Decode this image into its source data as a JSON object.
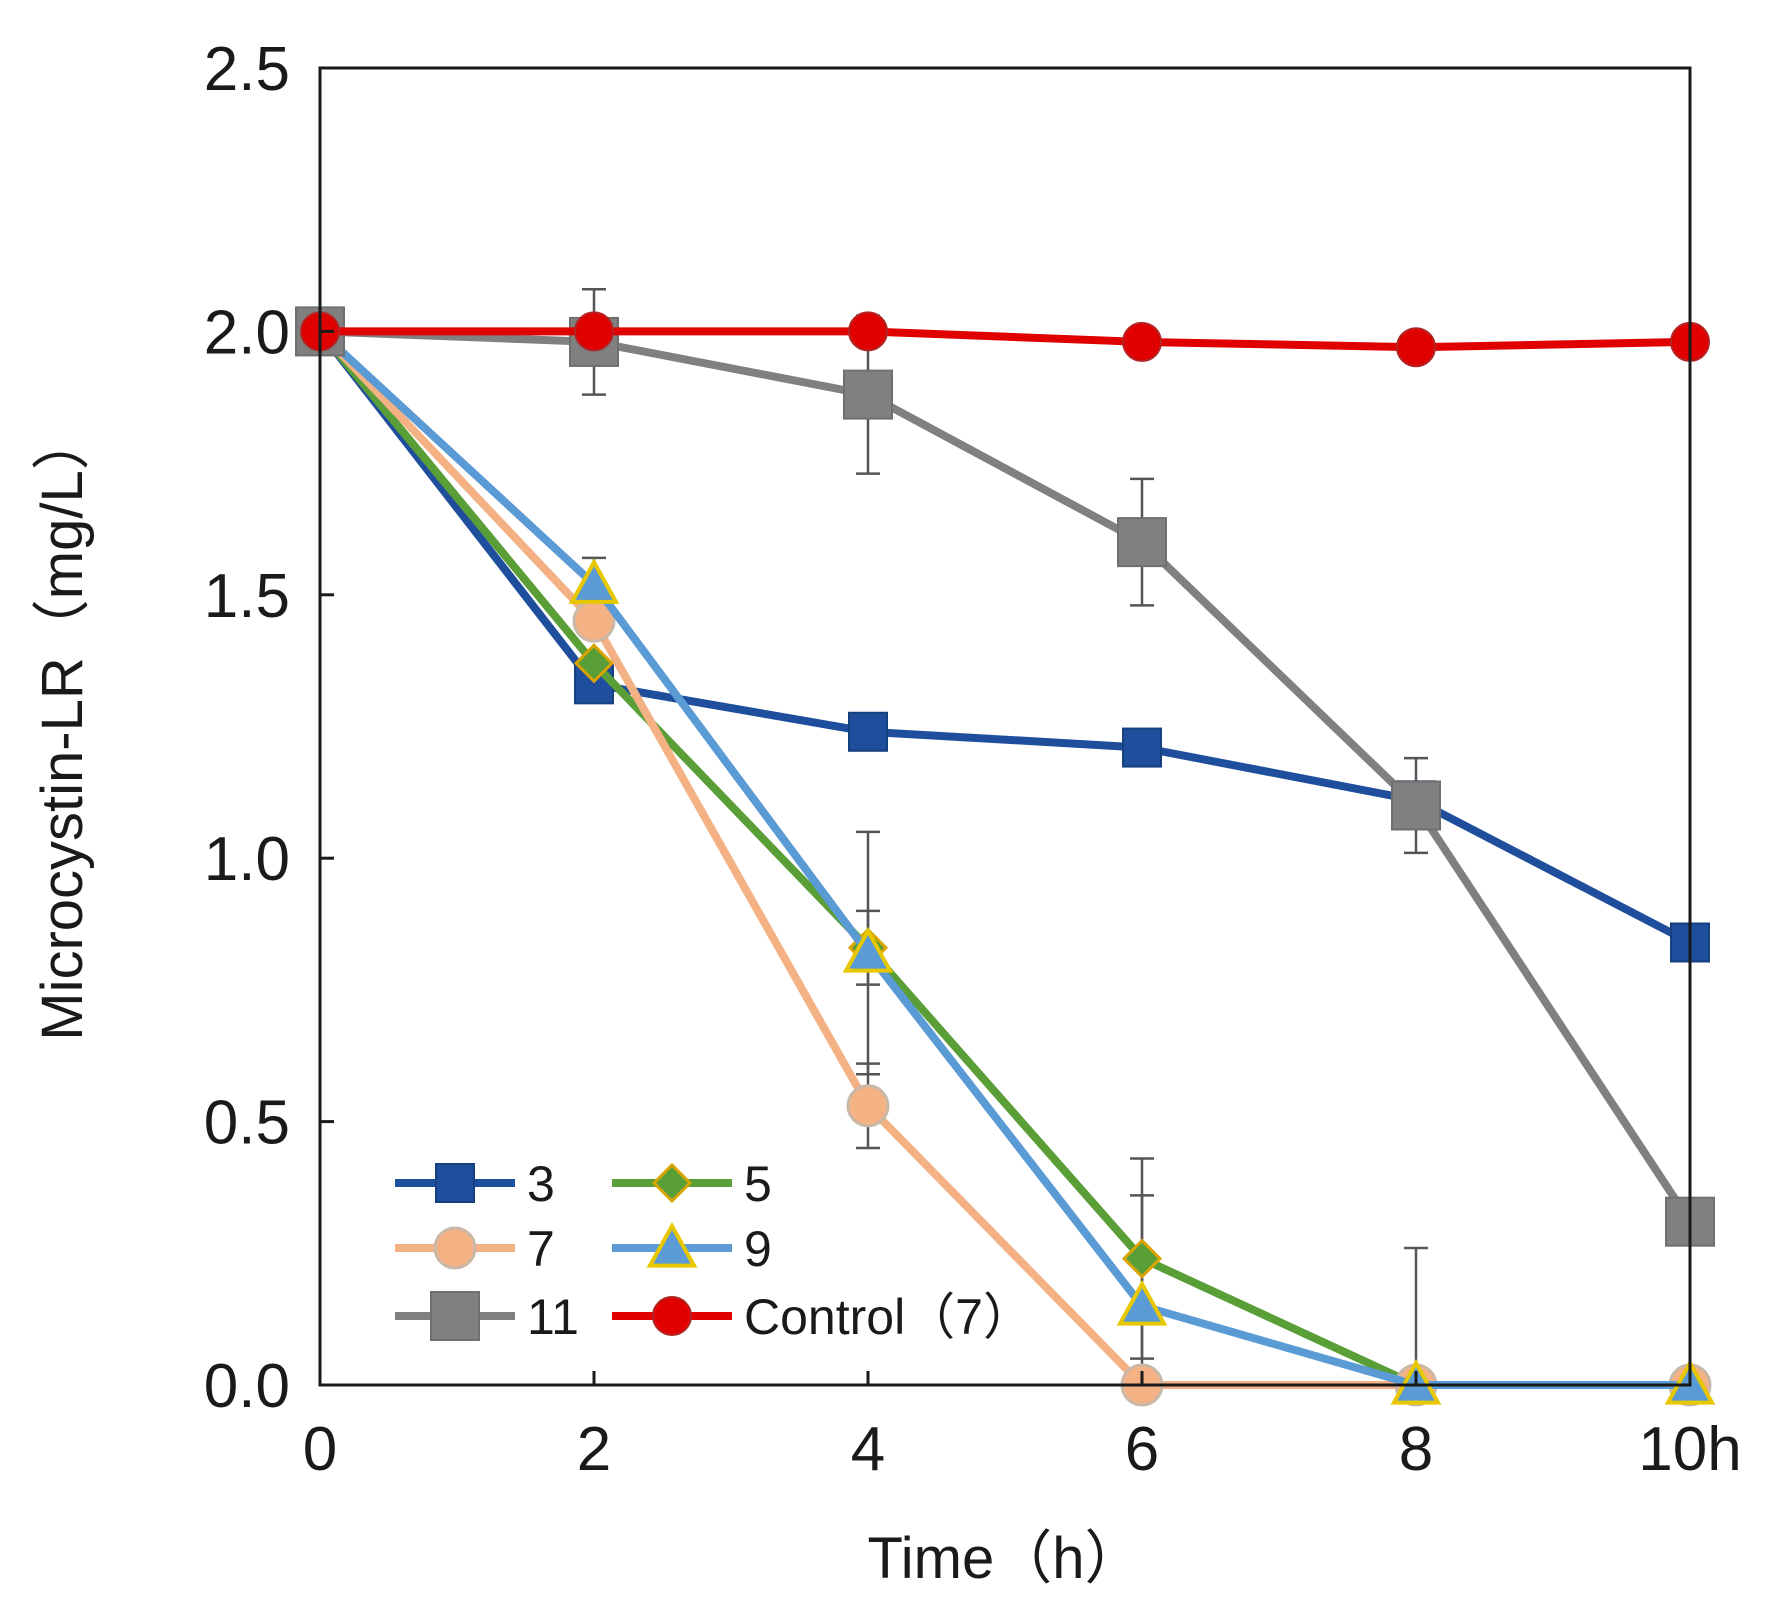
{
  "chart_data": {
    "type": "line",
    "title": "",
    "xlabel": "Time（h）",
    "ylabel": "Microcystin-LR（mg/L）",
    "x": [
      0,
      2,
      4,
      6,
      8,
      10
    ],
    "xtick_labels": [
      "0",
      "2",
      "4",
      "6",
      "8",
      "10h"
    ],
    "yticks": [
      "0.0",
      "0.5",
      "1.0",
      "1.5",
      "2.0",
      "2.5"
    ],
    "xlim": [
      0,
      10
    ],
    "ylim": [
      0,
      2.5
    ],
    "grid": false,
    "legend_position": "bottom-left",
    "series": [
      {
        "name": "3",
        "color": "#1f4e9c",
        "marker": "square",
        "values": [
          2.0,
          1.33,
          1.24,
          1.21,
          1.11,
          0.84
        ],
        "errors": [
          0,
          0,
          0,
          0,
          0,
          0
        ]
      },
      {
        "name": "5",
        "color": "#5a9e37",
        "marker": "diamond",
        "values": [
          2.0,
          1.37,
          0.83,
          0.24,
          0.0,
          0.0
        ],
        "errors": [
          0,
          0,
          0.07,
          0.19,
          0,
          0
        ]
      },
      {
        "name": "7",
        "color": "#f4b183",
        "marker": "circle",
        "values": [
          2.0,
          1.45,
          0.53,
          0.0,
          0.0,
          0.0
        ],
        "errors": [
          0,
          0,
          0.08,
          0,
          0,
          0
        ]
      },
      {
        "name": "9",
        "color": "#5b9bd5",
        "marker": "triangle",
        "values": [
          2.0,
          1.52,
          0.82,
          0.15,
          0.0,
          0.0
        ],
        "errors": [
          0,
          0.05,
          0.23,
          0.21,
          0,
          0
        ]
      },
      {
        "name": "11",
        "color": "#808080",
        "marker": "square-large",
        "values": [
          2.0,
          1.98,
          1.88,
          1.6,
          1.1,
          0.31
        ],
        "errors": [
          0,
          0.1,
          0.15,
          0.12,
          0.09,
          0
        ]
      },
      {
        "name": "Control（7）",
        "color": "#e00000",
        "marker": "circle-filled",
        "values": [
          2.0,
          2.0,
          2.0,
          1.98,
          1.97,
          1.98
        ],
        "errors": [
          0,
          0,
          0,
          0,
          0,
          0
        ]
      }
    ],
    "extra_error_bars": [
      {
        "x": 8,
        "y": 0.0,
        "upper": 0.26
      }
    ]
  }
}
